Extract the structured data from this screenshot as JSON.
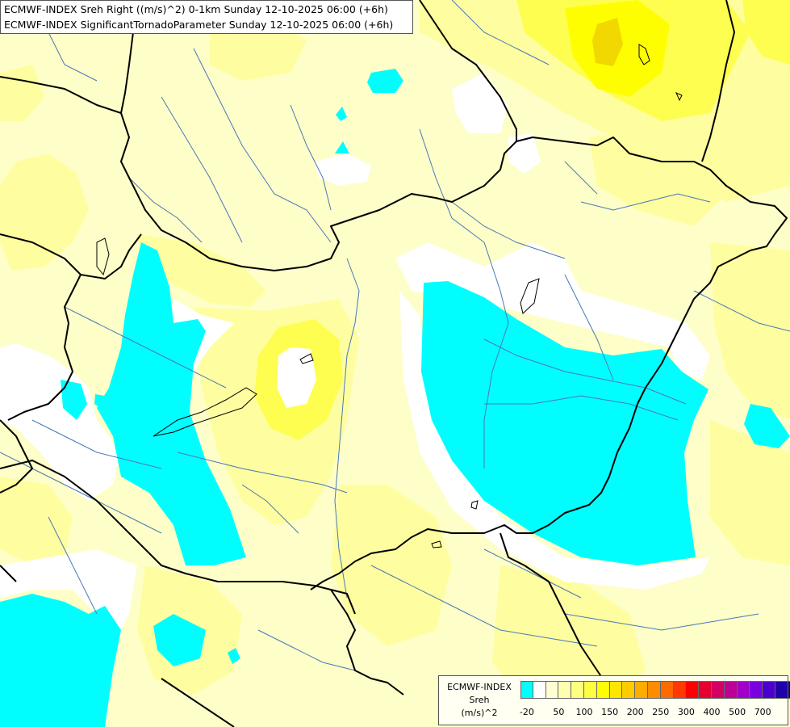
{
  "header": {
    "line1": "ECMWF-INDEX Sreh Right ((m/s)^2) 0-1km Sunday 12-10-2025 06:00 (+6h)",
    "line2": "ECMWF-INDEX SignificantTornadoParameter Sunday 12-10-2025 06:00 (+6h)"
  },
  "colors": {
    "background": "#fefec8",
    "white_band": "#ffffff",
    "yellow_light": "#fefea0",
    "yellow": "#fefe50",
    "yellow_strong": "#fefe00",
    "gold": "#f0d800",
    "cyan": "#00fefe",
    "border": "#000000",
    "river": "#4878b8"
  },
  "legend": {
    "title": [
      "ECMWF-INDEX",
      "Sreh",
      "(m/s)^2"
    ],
    "swatches": [
      "#00fefe",
      "#ffffff",
      "#fefed2",
      "#fefeb0",
      "#fefe80",
      "#fefe40",
      "#fefe00",
      "#fee600",
      "#fecc00",
      "#feac00",
      "#fe8c00",
      "#fe6a00",
      "#fe3a00",
      "#fe0000",
      "#e60030",
      "#d20064",
      "#bc0096",
      "#a200c8",
      "#7a00e0",
      "#4c00d0",
      "#2000a8",
      "#0a0070"
    ],
    "ticks": [
      "-20",
      "50",
      "100",
      "150",
      "200",
      "250",
      "300",
      "400",
      "500",
      "700"
    ]
  }
}
